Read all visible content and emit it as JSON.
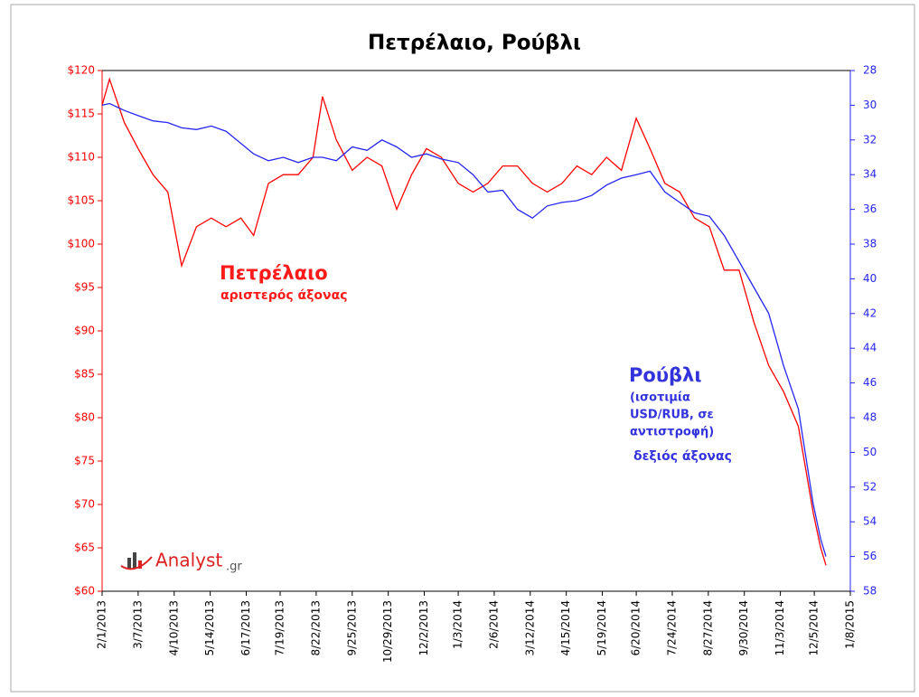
{
  "chart_data": {
    "type": "line",
    "title": "Πετρέλαιο, Ρούβλι",
    "x": [
      "2/1/2013",
      "2/8/2013",
      "2/22/2013",
      "3/7/2013",
      "3/21/2013",
      "4/4/2013",
      "4/17/2013",
      "5/1/2013",
      "5/15/2013",
      "5/29/2013",
      "6/12/2013",
      "6/24/2013",
      "7/8/2013",
      "7/22/2013",
      "8/5/2013",
      "8/19/2013",
      "8/28/2013",
      "9/10/2013",
      "9/25/2013",
      "10/9/2013",
      "10/23/2013",
      "11/6/2013",
      "11/20/2013",
      "12/4/2013",
      "12/18/2013",
      "1/3/2014",
      "1/17/2014",
      "1/31/2014",
      "2/14/2014",
      "2/28/2014",
      "3/14/2014",
      "3/28/2014",
      "4/11/2014",
      "4/25/2014",
      "5/9/2014",
      "5/23/2014",
      "6/6/2014",
      "6/20/2014",
      "7/3/2014",
      "7/17/2014",
      "7/31/2014",
      "8/14/2014",
      "8/28/2014",
      "9/11/2014",
      "9/25/2014",
      "10/9/2014",
      "10/23/2014",
      "11/6/2014",
      "11/20/2014",
      "12/4/2014",
      "12/11/2014",
      "12/16/2014"
    ],
    "series": [
      {
        "name": "Πετρέλαιο",
        "color": "#ff0000",
        "axis": "y",
        "values": [
          116,
          119,
          114,
          111,
          108,
          106,
          97.5,
          102,
          103,
          102,
          103,
          101,
          107,
          108,
          108,
          110,
          117,
          112,
          108.5,
          110,
          109,
          104,
          108,
          111,
          110,
          107,
          106,
          107,
          109,
          109,
          107,
          106,
          107,
          109,
          108,
          110,
          108.5,
          114.5,
          111,
          107,
          106,
          103,
          102,
          97,
          97,
          91,
          86,
          83,
          79,
          69,
          65,
          63
        ]
      },
      {
        "name": "Ρούβλι",
        "color": "#2626f0",
        "axis": "y2",
        "values": [
          30.0,
          29.9,
          30.3,
          30.6,
          30.9,
          31.0,
          31.3,
          31.4,
          31.2,
          31.5,
          32.2,
          32.8,
          33.2,
          33.0,
          33.3,
          33.0,
          33.0,
          33.2,
          32.4,
          32.6,
          32.0,
          32.4,
          33.0,
          32.8,
          33.1,
          33.3,
          34.0,
          35.0,
          34.9,
          36.0,
          36.5,
          35.8,
          35.6,
          35.5,
          35.2,
          34.6,
          34.2,
          34.0,
          33.8,
          35.0,
          35.6,
          36.2,
          36.4,
          37.5,
          39.0,
          40.5,
          42.0,
          45.0,
          47.5,
          53.0,
          55.0,
          56.0
        ]
      }
    ],
    "annotations": {
      "oil": "αριστερός άξονας",
      "rub_lines": [
        "(ισοτιμία",
        "USD/RUB, σε",
        "αντιστροφή)"
      ],
      "rub_axis": "δεξιός άξονας"
    },
    "logo": {
      "name": "Analyst",
      "suffix": ".gr"
    },
    "xlim": [
      "2/1/2013",
      "1/8/2015"
    ],
    "xticks": [
      "2/1/2013",
      "3/7/2013",
      "4/10/2013",
      "5/14/2013",
      "6/17/2013",
      "7/19/2013",
      "8/22/2013",
      "9/25/2013",
      "10/29/2013",
      "12/2/2013",
      "1/3/2014",
      "2/6/2014",
      "3/12/2014",
      "4/15/2014",
      "5/19/2014",
      "6/20/2014",
      "7/24/2014",
      "8/27/2014",
      "9/30/2014",
      "11/3/2014",
      "12/5/2014",
      "1/8/2015"
    ],
    "ylim": [
      60,
      120
    ],
    "yticks": [
      {
        "value": 60,
        "label": "$60"
      },
      {
        "value": 65,
        "label": "$65"
      },
      {
        "value": 70,
        "label": "$70"
      },
      {
        "value": 75,
        "label": "$75"
      },
      {
        "value": 80,
        "label": "$80"
      },
      {
        "value": 85,
        "label": "$85"
      },
      {
        "value": 90,
        "label": "$90"
      },
      {
        "value": 95,
        "label": "$95"
      },
      {
        "value": 100,
        "label": "$100"
      },
      {
        "value": 105,
        "label": "$105"
      },
      {
        "value": 110,
        "label": "$110"
      },
      {
        "value": 115,
        "label": "$115"
      },
      {
        "value": 120,
        "label": "$120"
      }
    ],
    "y2lim": [
      28,
      58
    ],
    "y2_inverted": true,
    "y2ticks": [
      28,
      30,
      32,
      34,
      36,
      38,
      40,
      42,
      44,
      46,
      48,
      50,
      52,
      54,
      56,
      58
    ]
  }
}
